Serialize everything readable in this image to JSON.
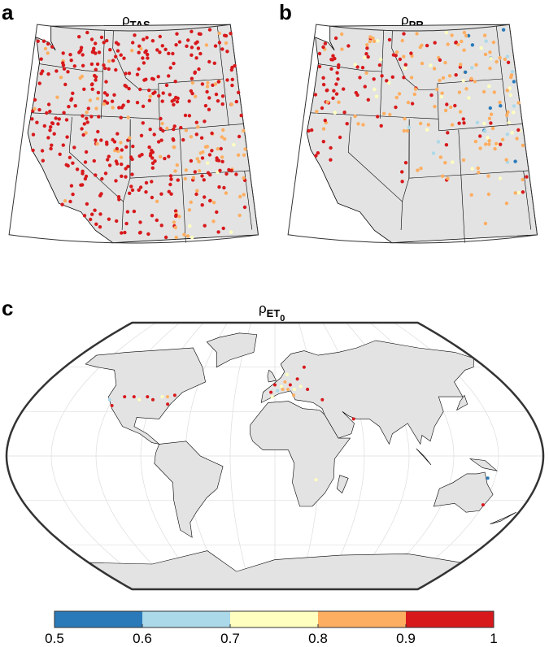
{
  "panels": [
    {
      "label": "a",
      "title": "ρ",
      "subscript": "TAS"
    },
    {
      "label": "b",
      "title": "ρ",
      "subscript": "PR"
    },
    {
      "label": "c",
      "title": "ρ",
      "subscript": "ET",
      "subsubscript": "0"
    }
  ],
  "colorbar": {
    "ticks": [
      0.5,
      0.6,
      0.7,
      0.8,
      0.9,
      1
    ],
    "colors": [
      "#2a7ab9",
      "#abd9e9",
      "#ffffbf",
      "#fdae61",
      "#d7191c"
    ]
  }
}
